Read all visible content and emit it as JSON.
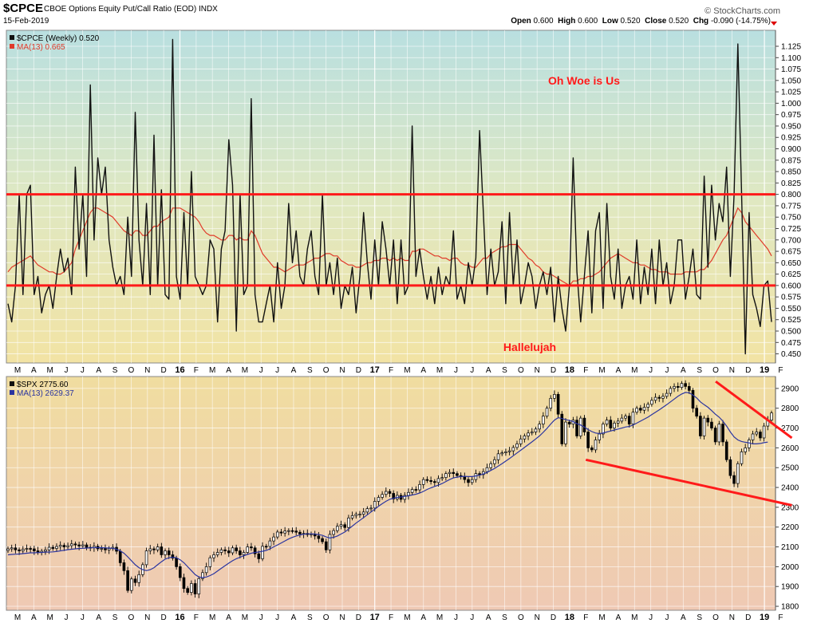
{
  "header": {
    "symbol": "$CPCE",
    "description": "CBOE Options Equity Put/Call Ratio (EOD)  INDX",
    "date": "15-Feb-2019",
    "brand": "© StockCharts.com",
    "ohlc": {
      "open_label": "Open",
      "open": "0.600",
      "high_label": "High",
      "high": "0.600",
      "low_label": "Low",
      "low": "0.520",
      "close_label": "Close",
      "close": "0.520",
      "chg_label": "Chg",
      "chg": "-0.090 (-14.75%)"
    }
  },
  "colors": {
    "price_line": "#111111",
    "ma_cpce": "#e03a2a",
    "ma_spx": "#2a34a0",
    "threshold": "#ff1a1a",
    "trendline": "#ff1a1a",
    "annotation": "#ff1a1a"
  },
  "chart_data": [
    {
      "type": "line",
      "panel": "top",
      "series": [
        {
          "name": "$CPCE (Weekly) 0.520",
          "y": [
            0.56,
            0.52,
            0.6,
            0.8,
            0.58,
            0.8,
            0.82,
            0.58,
            0.62,
            0.54,
            0.58,
            0.6,
            0.55,
            0.62,
            0.68,
            0.63,
            0.66,
            0.58,
            0.86,
            0.68,
            0.8,
            0.62,
            1.04,
            0.7,
            0.88,
            0.8,
            0.86,
            0.7,
            0.64,
            0.6,
            0.62,
            0.58,
            0.75,
            0.62,
            0.98,
            0.7,
            0.6,
            0.78,
            0.58,
            0.93,
            0.6,
            0.81,
            0.58,
            0.57,
            1.14,
            0.62,
            0.57,
            0.76,
            0.6,
            0.85,
            0.62,
            0.6,
            0.58,
            0.6,
            0.7,
            0.68,
            0.52,
            0.68,
            0.72,
            0.92,
            0.82,
            0.5,
            0.8,
            0.58,
            0.6,
            1.01,
            0.58,
            0.52,
            0.52,
            0.56,
            0.6,
            0.52,
            0.65,
            0.55,
            0.6,
            0.78,
            0.65,
            0.72,
            0.62,
            0.6,
            0.68,
            0.72,
            0.62,
            0.58,
            0.8,
            0.6,
            0.65,
            0.58,
            0.66,
            0.55,
            0.6,
            0.58,
            0.64,
            0.54,
            0.62,
            0.76,
            0.65,
            0.57,
            0.7,
            0.6,
            0.74,
            0.68,
            0.6,
            0.7,
            0.56,
            0.7,
            0.58,
            0.6,
            0.95,
            0.62,
            0.68,
            0.62,
            0.57,
            0.62,
            0.56,
            0.64,
            0.58,
            0.62,
            0.6,
            0.72,
            0.57,
            0.6,
            0.56,
            0.65,
            0.6,
            0.66,
            0.94,
            0.76,
            0.58,
            0.68,
            0.6,
            0.63,
            0.74,
            0.56,
            0.76,
            0.6,
            0.7,
            0.56,
            0.6,
            0.65,
            0.62,
            0.55,
            0.6,
            0.63,
            0.58,
            0.64,
            0.52,
            0.62,
            0.55,
            0.5,
            0.6,
            0.88,
            0.63,
            0.52,
            0.62,
            0.72,
            0.54,
            0.72,
            0.76,
            0.55,
            0.78,
            0.62,
            0.57,
            0.68,
            0.55,
            0.6,
            0.62,
            0.57,
            0.7,
            0.56,
            0.64,
            0.58,
            0.68,
            0.56,
            0.7,
            0.6,
            0.65,
            0.56,
            0.6,
            0.7,
            0.7,
            0.57,
            0.62,
            0.68,
            0.58,
            0.57,
            0.84,
            0.64,
            0.82,
            0.7,
            0.78,
            0.74,
            0.86,
            0.62,
            0.8,
            1.13,
            0.8,
            0.45,
            0.76,
            0.58,
            0.55,
            0.51,
            0.6,
            0.61,
            0.52
          ]
        },
        {
          "name": "MA(13) 0.665",
          "y": [
            0.63,
            0.64,
            0.645,
            0.65,
            0.655,
            0.66,
            0.665,
            0.655,
            0.645,
            0.64,
            0.635,
            0.63,
            0.63,
            0.625,
            0.625,
            0.63,
            0.64,
            0.65,
            0.68,
            0.7,
            0.72,
            0.74,
            0.76,
            0.77,
            0.77,
            0.765,
            0.76,
            0.755,
            0.75,
            0.74,
            0.73,
            0.72,
            0.715,
            0.71,
            0.72,
            0.72,
            0.71,
            0.71,
            0.72,
            0.73,
            0.73,
            0.74,
            0.745,
            0.75,
            0.77,
            0.77,
            0.77,
            0.765,
            0.76,
            0.755,
            0.75,
            0.74,
            0.725,
            0.715,
            0.71,
            0.71,
            0.705,
            0.7,
            0.7,
            0.71,
            0.71,
            0.7,
            0.705,
            0.7,
            0.7,
            0.72,
            0.71,
            0.69,
            0.67,
            0.66,
            0.65,
            0.64,
            0.64,
            0.635,
            0.63,
            0.635,
            0.64,
            0.645,
            0.645,
            0.645,
            0.65,
            0.655,
            0.66,
            0.66,
            0.665,
            0.67,
            0.67,
            0.665,
            0.665,
            0.655,
            0.65,
            0.645,
            0.645,
            0.64,
            0.64,
            0.645,
            0.65,
            0.65,
            0.655,
            0.655,
            0.66,
            0.66,
            0.655,
            0.66,
            0.655,
            0.66,
            0.655,
            0.655,
            0.675,
            0.675,
            0.68,
            0.68,
            0.675,
            0.67,
            0.665,
            0.665,
            0.66,
            0.66,
            0.655,
            0.66,
            0.66,
            0.65,
            0.645,
            0.645,
            0.64,
            0.64,
            0.65,
            0.66,
            0.66,
            0.67,
            0.675,
            0.68,
            0.685,
            0.685,
            0.69,
            0.69,
            0.69,
            0.68,
            0.67,
            0.66,
            0.655,
            0.645,
            0.64,
            0.63,
            0.625,
            0.625,
            0.62,
            0.615,
            0.61,
            0.605,
            0.6,
            0.61,
            0.61,
            0.615,
            0.615,
            0.62,
            0.62,
            0.625,
            0.63,
            0.64,
            0.65,
            0.66,
            0.665,
            0.67,
            0.665,
            0.66,
            0.655,
            0.65,
            0.65,
            0.645,
            0.645,
            0.64,
            0.635,
            0.635,
            0.63,
            0.63,
            0.63,
            0.625,
            0.625,
            0.625,
            0.625,
            0.63,
            0.63,
            0.63,
            0.63,
            0.635,
            0.635,
            0.645,
            0.655,
            0.67,
            0.685,
            0.7,
            0.71,
            0.73,
            0.75,
            0.77,
            0.76,
            0.74,
            0.73,
            0.72,
            0.71,
            0.7,
            0.69,
            0.68,
            0.665
          ]
        }
      ],
      "x_tick_labels": [
        "M",
        "A",
        "M",
        "J",
        "J",
        "A",
        "S",
        "O",
        "N",
        "D",
        "16",
        "F",
        "M",
        "A",
        "M",
        "J",
        "J",
        "A",
        "S",
        "O",
        "N",
        "D",
        "17",
        "F",
        "M",
        "A",
        "M",
        "J",
        "J",
        "A",
        "S",
        "O",
        "N",
        "D",
        "18",
        "F",
        "M",
        "A",
        "M",
        "J",
        "J",
        "A",
        "S",
        "O",
        "N",
        "D",
        "19",
        "F"
      ],
      "y_ticks": [
        "0.450",
        "0.475",
        "0.500",
        "0.525",
        "0.550",
        "0.575",
        "0.600",
        "0.625",
        "0.650",
        "0.675",
        "0.700",
        "0.725",
        "0.750",
        "0.775",
        "0.800",
        "0.825",
        "0.850",
        "0.875",
        "0.900",
        "0.925",
        "0.950",
        "0.975",
        "1.000",
        "1.025",
        "1.050",
        "1.075",
        "1.100",
        "1.125"
      ],
      "ylim": [
        0.43,
        1.16
      ],
      "y_axis_side": "right",
      "grid": true,
      "horizontal_lines": [
        0.8,
        0.6
      ],
      "annotations": [
        "Oh Woe is Us",
        "Hallelujah"
      ]
    },
    {
      "type": "candlestick",
      "panel": "bottom",
      "series": [
        {
          "name": "$SPX 2775.60",
          "close": [
            2090,
            2095,
            2085,
            2080,
            2088,
            2092,
            2090,
            2080,
            2072,
            2078,
            2085,
            2098,
            2092,
            2102,
            2108,
            2100,
            2106,
            2115,
            2110,
            2104,
            2110,
            2098,
            2096,
            2103,
            2090,
            2092,
            2085,
            2092,
            2098,
            2078,
            2020,
            1980,
            1880,
            1938,
            1920,
            1960,
            2010,
            2080,
            2090,
            2085,
            2100,
            2060,
            2080,
            2060,
            2043,
            2000,
            1945,
            1890,
            1870,
            1915,
            1862,
            1940,
            1970,
            2000,
            2045,
            2060,
            2072,
            2085,
            2080,
            2070,
            2095,
            2080,
            2060,
            2072,
            2100,
            2095,
            2065,
            2040,
            2103,
            2102,
            2130,
            2150,
            2175,
            2170,
            2180,
            2182,
            2180,
            2174,
            2165,
            2168,
            2162,
            2165,
            2155,
            2142,
            2126,
            2085,
            2163,
            2182,
            2204,
            2212,
            2198,
            2246,
            2258,
            2265,
            2265,
            2276,
            2293,
            2296,
            2330,
            2350,
            2365,
            2380,
            2370,
            2342,
            2360,
            2340,
            2360,
            2375,
            2390,
            2388,
            2415,
            2440,
            2435,
            2430,
            2425,
            2445,
            2450,
            2470,
            2476,
            2470,
            2460,
            2455,
            2440,
            2425,
            2440,
            2470,
            2465,
            2480,
            2500,
            2520,
            2540,
            2570,
            2575,
            2580,
            2585,
            2602,
            2620,
            2645,
            2660,
            2675,
            2680,
            2695,
            2720,
            2760,
            2800,
            2850,
            2870,
            2770,
            2620,
            2730,
            2720,
            2740,
            2660,
            2750,
            2680,
            2600,
            2590,
            2640,
            2670,
            2720,
            2740,
            2700,
            2725,
            2735,
            2750,
            2760,
            2720,
            2780,
            2800,
            2790,
            2805,
            2820,
            2840,
            2855,
            2850,
            2860,
            2875,
            2900,
            2910,
            2905,
            2925,
            2910,
            2890,
            2800,
            2760,
            2660,
            2750,
            2730,
            2700,
            2630,
            2720,
            2630,
            2540,
            2460,
            2420,
            2520,
            2580,
            2600,
            2640,
            2670,
            2680,
            2650,
            2710,
            2740,
            2776
          ]
        },
        {
          "name": "MA(13) 2629.37",
          "y": [
            2060,
            2062,
            2063,
            2064,
            2066,
            2068,
            2070,
            2070,
            2071,
            2072,
            2073,
            2074,
            2075,
            2077,
            2080,
            2083,
            2086,
            2088,
            2090,
            2092,
            2093,
            2094,
            2095,
            2096,
            2096,
            2096,
            2095,
            2094,
            2093,
            2088,
            2080,
            2068,
            2050,
            2030,
            2010,
            1995,
            1985,
            1980,
            1985,
            1995,
            2010,
            2025,
            2038,
            2045,
            2048,
            2045,
            2035,
            2020,
            2000,
            1980,
            1960,
            1948,
            1945,
            1948,
            1955,
            1965,
            1978,
            1992,
            2005,
            2018,
            2030,
            2040,
            2048,
            2055,
            2062,
            2068,
            2072,
            2074,
            2078,
            2082,
            2090,
            2100,
            2110,
            2120,
            2130,
            2140,
            2148,
            2155,
            2160,
            2164,
            2166,
            2166,
            2165,
            2162,
            2158,
            2150,
            2145,
            2148,
            2155,
            2165,
            2175,
            2190,
            2205,
            2220,
            2234,
            2248,
            2262,
            2276,
            2290,
            2305,
            2318,
            2330,
            2340,
            2346,
            2350,
            2352,
            2355,
            2358,
            2362,
            2366,
            2372,
            2380,
            2390,
            2398,
            2405,
            2412,
            2420,
            2430,
            2440,
            2448,
            2452,
            2455,
            2456,
            2455,
            2455,
            2458,
            2462,
            2468,
            2476,
            2486,
            2496,
            2508,
            2520,
            2533,
            2546,
            2560,
            2574,
            2588,
            2602,
            2616,
            2630,
            2645,
            2660,
            2678,
            2698,
            2720,
            2740,
            2752,
            2748,
            2742,
            2738,
            2732,
            2722,
            2715,
            2705,
            2692,
            2682,
            2675,
            2672,
            2675,
            2680,
            2685,
            2690,
            2695,
            2700,
            2705,
            2708,
            2715,
            2725,
            2735,
            2745,
            2755,
            2768,
            2780,
            2792,
            2805,
            2818,
            2832,
            2846,
            2860,
            2872,
            2880,
            2878,
            2866,
            2852,
            2832,
            2818,
            2805,
            2788,
            2770,
            2755,
            2735,
            2710,
            2680,
            2655,
            2640,
            2632,
            2628,
            2625,
            2620,
            2620,
            2622,
            2626,
            2629
          ]
        }
      ],
      "x_tick_labels": [
        "M",
        "A",
        "M",
        "J",
        "J",
        "A",
        "S",
        "O",
        "N",
        "D",
        "16",
        "F",
        "M",
        "A",
        "M",
        "J",
        "J",
        "A",
        "S",
        "O",
        "N",
        "D",
        "17",
        "F",
        "M",
        "A",
        "M",
        "J",
        "J",
        "A",
        "S",
        "O",
        "N",
        "D",
        "18",
        "F",
        "M",
        "A",
        "M",
        "J",
        "J",
        "A",
        "S",
        "O",
        "N",
        "D",
        "19",
        "F"
      ],
      "y_ticks": [
        "1800",
        "1900",
        "2000",
        "2100",
        "2200",
        "2300",
        "2400",
        "2500",
        "2600",
        "2700",
        "2800",
        "2900"
      ],
      "ylim": [
        1780,
        2960
      ],
      "y_axis_side": "right",
      "grid": true,
      "trendlines": [
        {
          "from": [
            "2018-02",
            2540
          ],
          "to": [
            "2019-02",
            2310
          ]
        },
        {
          "from": [
            "2018-10",
            2935
          ],
          "to": [
            "2019-02",
            2650
          ]
        }
      ]
    }
  ]
}
